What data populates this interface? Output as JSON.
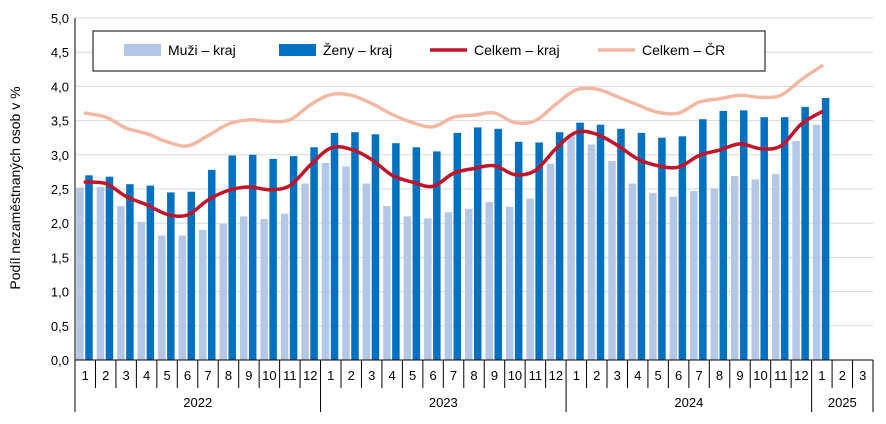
{
  "chart_data": {
    "type": "bar",
    "title": "",
    "ylabel": "Podíl nezaměstnaných osob v %",
    "ylim": [
      0,
      5
    ],
    "yticks": [
      "0,0",
      "0,5",
      "1,0",
      "1,5",
      "2,0",
      "2,5",
      "3,0",
      "3,5",
      "4,0",
      "4,5",
      "5,0"
    ],
    "ytick_values": [
      0,
      0.5,
      1,
      1.5,
      2,
      2.5,
      3,
      3.5,
      4,
      4.5,
      5
    ],
    "grid": true,
    "legend_position": "top",
    "categories": [
      "1",
      "2",
      "3",
      "4",
      "5",
      "6",
      "7",
      "8",
      "9",
      "10",
      "11",
      "12",
      "1",
      "2",
      "3",
      "4",
      "5",
      "6",
      "7",
      "8",
      "9",
      "10",
      "11",
      "12",
      "1",
      "2",
      "3",
      "4",
      "5",
      "6",
      "7",
      "8",
      "9",
      "10",
      "11",
      "12",
      "1",
      "2",
      "3"
    ],
    "years": [
      {
        "label": "2022",
        "start": 0,
        "count": 12
      },
      {
        "label": "2023",
        "start": 12,
        "count": 12
      },
      {
        "label": "2024",
        "start": 24,
        "count": 12
      },
      {
        "label": "2025",
        "start": 36,
        "count": 3
      }
    ],
    "series": [
      {
        "name": "Muži – kraj",
        "kind": "bar",
        "color": "#b4c7e7",
        "values": [
          2.52,
          2.53,
          2.25,
          2.02,
          1.82,
          1.82,
          1.9,
          1.99,
          2.1,
          2.06,
          2.14,
          2.58,
          2.88,
          2.83,
          2.58,
          2.25,
          2.1,
          2.07,
          2.16,
          2.21,
          2.31,
          2.24,
          2.36,
          2.87,
          3.3,
          3.15,
          2.91,
          2.58,
          2.44,
          2.39,
          2.47,
          2.51,
          2.69,
          2.64,
          2.72,
          3.2,
          3.44,
          null,
          null
        ]
      },
      {
        "name": "Ženy – kraj",
        "kind": "bar",
        "color": "#0070c0",
        "values": [
          2.7,
          2.68,
          2.57,
          2.55,
          2.45,
          2.46,
          2.78,
          2.99,
          3.0,
          2.94,
          2.98,
          3.11,
          3.32,
          3.33,
          3.3,
          3.17,
          3.11,
          3.05,
          3.32,
          3.4,
          3.38,
          3.19,
          3.18,
          3.33,
          3.47,
          3.44,
          3.38,
          3.32,
          3.25,
          3.27,
          3.52,
          3.64,
          3.65,
          3.55,
          3.55,
          3.7,
          3.83,
          null,
          null
        ]
      },
      {
        "name": "Celkem – kraj",
        "kind": "line",
        "color": "#c0142b",
        "values": [
          2.6,
          2.58,
          2.39,
          2.27,
          2.13,
          2.12,
          2.34,
          2.48,
          2.53,
          2.49,
          2.55,
          2.85,
          3.1,
          3.08,
          2.93,
          2.7,
          2.6,
          2.54,
          2.73,
          2.8,
          2.84,
          2.71,
          2.77,
          3.09,
          3.33,
          3.3,
          3.14,
          2.94,
          2.84,
          2.82,
          2.99,
          3.07,
          3.16,
          3.09,
          3.13,
          3.45,
          3.63,
          null,
          null
        ]
      },
      {
        "name": "Celkem – ČR",
        "kind": "line",
        "color": "#f2b8a4",
        "values": [
          3.61,
          3.55,
          3.39,
          3.31,
          3.19,
          3.13,
          3.28,
          3.45,
          3.51,
          3.49,
          3.51,
          3.73,
          3.88,
          3.87,
          3.75,
          3.59,
          3.47,
          3.41,
          3.55,
          3.58,
          3.61,
          3.47,
          3.5,
          3.74,
          3.95,
          3.96,
          3.85,
          3.73,
          3.62,
          3.61,
          3.77,
          3.82,
          3.87,
          3.84,
          3.87,
          4.1,
          4.3,
          null,
          null
        ]
      }
    ]
  }
}
